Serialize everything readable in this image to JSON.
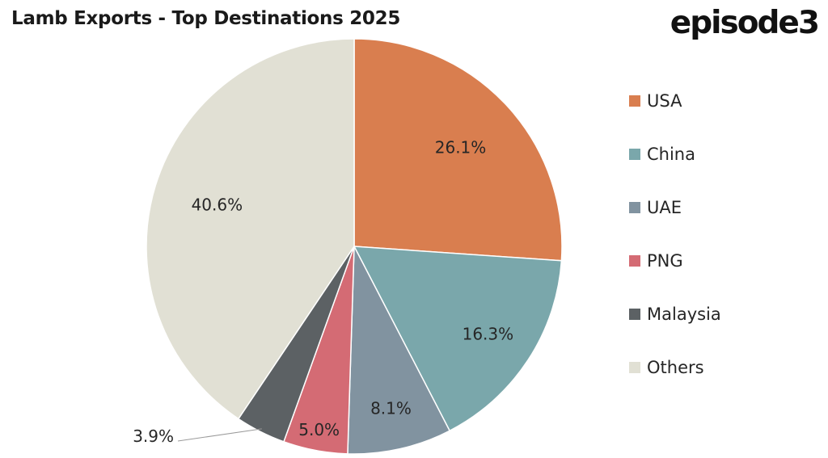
{
  "chart_data": {
    "type": "pie",
    "title": "Lamb Exports - Top Destinations 2025",
    "categories": [
      "USA",
      "China",
      "UAE",
      "PNG",
      "Malaysia",
      "Others"
    ],
    "values": [
      26.1,
      16.3,
      8.1,
      5.0,
      3.9,
      40.6
    ],
    "data_labels": [
      "26.1%",
      "16.3%",
      "8.1%",
      "5.0%",
      "3.9%",
      "40.6%"
    ],
    "colors": [
      "#d97e4f",
      "#7aa7ab",
      "#8193a0",
      "#d46b74",
      "#5c6164",
      "#e1e0d4"
    ],
    "legend_position": "right",
    "start_angle": "12 o'clock",
    "direction": "clockwise"
  },
  "brand": {
    "logo_text": "episode3"
  }
}
